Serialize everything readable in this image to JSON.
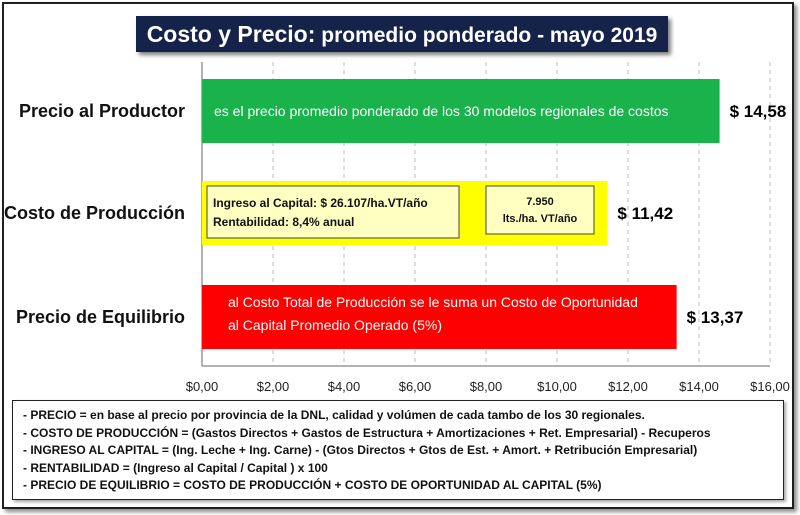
{
  "title": {
    "part1": "Costo  y Precio:",
    "part2": " promedio ponderado - mayo 2019"
  },
  "chart_data": {
    "type": "bar",
    "orientation": "horizontal",
    "categories": [
      "Precio al Productor",
      "Costo de Producción",
      "Precio de Equilibrio"
    ],
    "values": [
      14.58,
      11.42,
      13.37
    ],
    "value_labels": [
      "$ 14,58",
      "$ 11,42",
      "$ 13,37"
    ],
    "bar_colors": [
      "#19b24b",
      "#ffff00",
      "#ff0000"
    ],
    "xlim": [
      0,
      16
    ],
    "ticks": [
      0,
      2,
      4,
      6,
      8,
      10,
      12,
      14,
      16
    ],
    "tick_labels": [
      "$0,00",
      "$2,00",
      "$4,00",
      "$6,00",
      "$8,00",
      "$10,00",
      "$12,00",
      "$14,00",
      "$16,00"
    ],
    "grid": "vertical dashed",
    "annotations": {
      "productor": "es el precio promedio ponderado de los 30 modelos regionales de costos",
      "produccion_box_left": [
        "Ingreso al Capital: $ 26.107/ha.VT/año",
        "Rentabilidad: 8,4% anual"
      ],
      "produccion_box_right": [
        "7.950",
        "lts./ha. VT/año"
      ],
      "equilibrio": [
        "al Costo Total de Producción se le suma un Costo de Oportunidad",
        "al Capital Promedio Operado (5%)"
      ]
    }
  },
  "notes": [
    "- PRECIO = en base al precio por provincia de la DNL, calidad y volúmen de cada tambo de los 30 regionales.",
    "- COSTO DE PRODUCCIÓN = (Gastos Directos + Gastos de Estructura + Amortizaciones + Ret. Empresarial) - Recuperos",
    "- INGRESO AL CAPITAL = (Ing. Leche + Ing. Carne) - (Gtos Directos + Gtos de Est. + Amort. + Retribución Empresarial)",
    "- RENTABILIDAD = (Ingreso al Capital / Capital ) x 100",
    "- PRECIO DE EQUILIBRIO = COSTO DE PRODUCCIÓN + COSTO DE OPORTUNIDAD AL CAPITAL (5%)"
  ]
}
